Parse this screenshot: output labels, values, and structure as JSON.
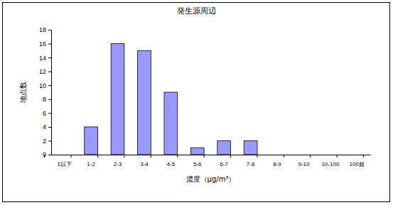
{
  "chart_data": {
    "type": "bar",
    "title": "発生源周辺",
    "x_label": "濃度（μg/m³）",
    "y_label": "地点数",
    "categories": [
      "1以下",
      "1-2",
      "2-3",
      "3-4",
      "4-5",
      "5-6",
      "6-7",
      "7-8",
      "8-9",
      "9-10",
      "10-100",
      "100超"
    ],
    "values": [
      0,
      4,
      16,
      15,
      9,
      1,
      2,
      2,
      0,
      0,
      0,
      0
    ],
    "color": "#9999ff",
    "ylim": [
      0,
      18
    ],
    "yticks": [
      0,
      2,
      4,
      6,
      8,
      10,
      12,
      14,
      16,
      18
    ],
    "grid": false
  }
}
